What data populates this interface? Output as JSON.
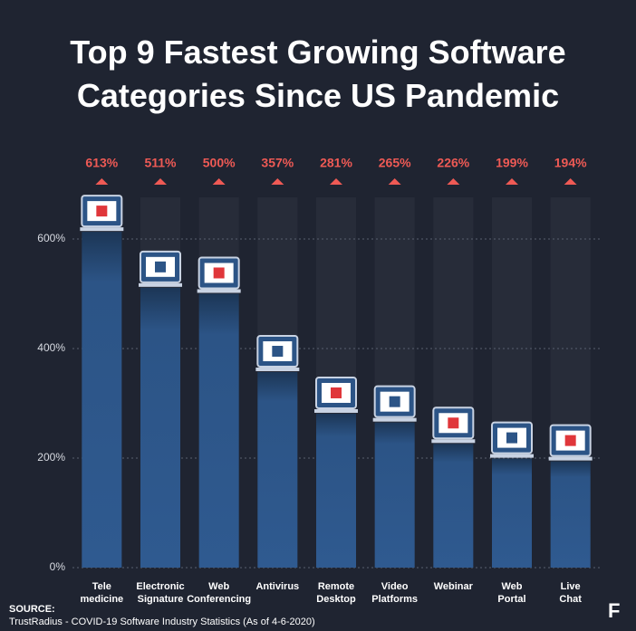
{
  "chart_data": {
    "type": "bar",
    "title": "Top 9 Fastest Growing Software\nCategories Since US Pandemic",
    "categories": [
      "Tele\nmedicine",
      "Electronic\nSignature",
      "Web\nConferencing",
      "Antivirus",
      "Remote\nDesktop",
      "Video\nPlatforms",
      "Webinar",
      "Web\nPortal",
      "Live\nChat"
    ],
    "values": [
      613,
      511,
      500,
      357,
      281,
      265,
      226,
      199,
      194
    ],
    "value_labels": [
      "613%",
      "511%",
      "500%",
      "357%",
      "281%",
      "265%",
      "226%",
      "199%",
      "194%"
    ],
    "color": "#2c5486",
    "label_color": "#ef5a55",
    "ylim": [
      0,
      676
    ],
    "yticks": [
      {
        "value": 0,
        "label": "0%"
      },
      {
        "value": 200,
        "label": "200%"
      },
      {
        "value": 400,
        "label": "400%"
      },
      {
        "value": 600,
        "label": "600%"
      }
    ],
    "grid": true,
    "source_heading": "SOURCE:",
    "source": "TrustRadius - COVID-19 Software Industry Statistics (As of 4-6-2020)",
    "logo": "F"
  }
}
